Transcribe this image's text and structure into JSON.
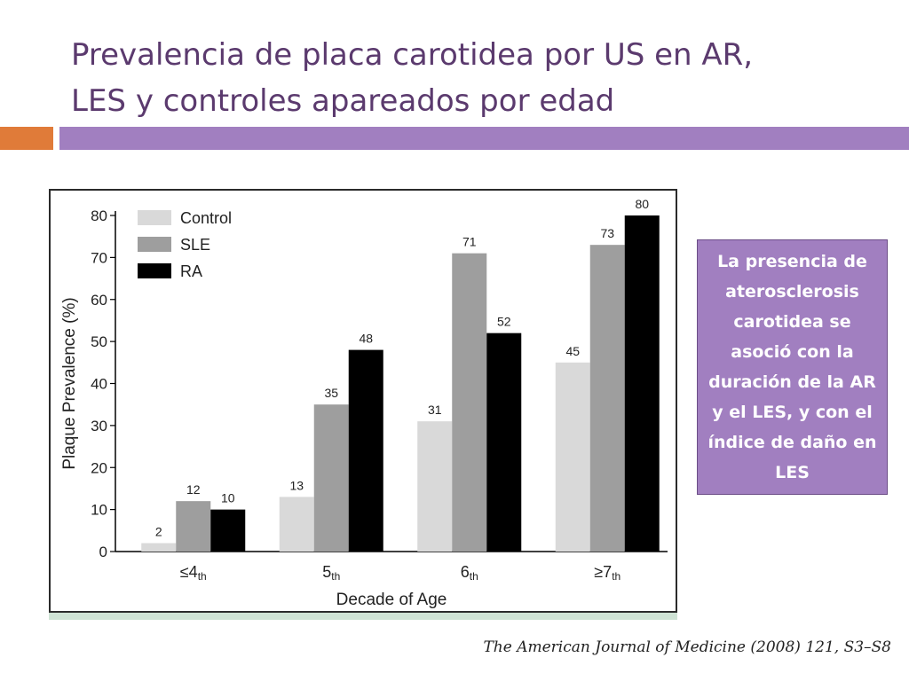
{
  "slide": {
    "title_line1": "Prevalencia de placa carotidea por US en AR,",
    "title_line2": "LES y controles apareados por edad",
    "callout": "La presencia de aterosclerosis carotidea se asoció con la duración de la AR y el LES, y con el índice de daño en LES",
    "citation": "The American Journal of Medicine (2008) 121, S3–S8"
  },
  "colors": {
    "title": "#5b3a6e",
    "accent_orange": "#e07b39",
    "accent_purple": "#a17fc0",
    "control": "#d9d9d9",
    "sle": "#9e9e9e",
    "ra": "#000000"
  },
  "chart_data": {
    "type": "bar",
    "xlabel": "Decade of Age",
    "ylabel": "Plaque Prevalence (%)",
    "ylim": [
      0,
      80
    ],
    "yticks": [
      0,
      10,
      20,
      30,
      40,
      50,
      60,
      70,
      80
    ],
    "categories": [
      "≤4th",
      "5th",
      "6th",
      "≥7th"
    ],
    "category_labels": [
      {
        "main": "≤4",
        "sub": "th"
      },
      {
        "main": "5",
        "sub": "th"
      },
      {
        "main": "6",
        "sub": "th"
      },
      {
        "main": "≥7",
        "sub": "th"
      }
    ],
    "legend_position": "top-left",
    "series": [
      {
        "name": "Control",
        "values": [
          2,
          13,
          31,
          45
        ]
      },
      {
        "name": "SLE",
        "values": [
          12,
          35,
          71,
          73
        ]
      },
      {
        "name": "RA",
        "values": [
          10,
          48,
          52,
          80
        ]
      }
    ]
  }
}
